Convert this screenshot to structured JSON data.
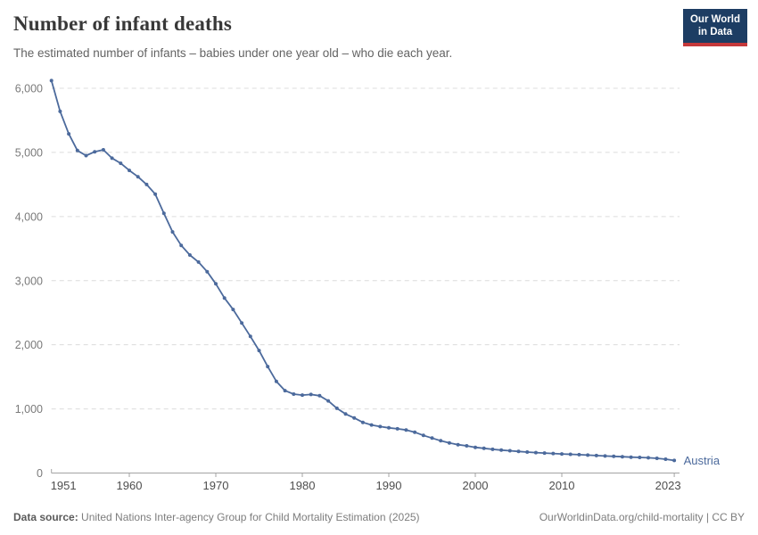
{
  "header": {
    "title": "Number of infant deaths",
    "subtitle": "The estimated number of infants – babies under one year old – who die each year.",
    "logo": {
      "line1": "Our World",
      "line2": "in Data"
    }
  },
  "footer": {
    "source_label": "Data source:",
    "source_text": " United Nations Inter-agency Group for Child Mortality Estimation (2025)",
    "rights": "OurWorldinData.org/child-mortality | CC BY"
  },
  "colors": {
    "series": "#4C6A9C",
    "grid": "#dcdcdc",
    "axis": "#a3a3a3",
    "y_labels": "#7a7a7a",
    "x_labels": "#4e4e4e",
    "logo_bg": "#1d3d63",
    "logo_accent": "#C5383A"
  },
  "chart_data": {
    "type": "line",
    "title": "Number of infant deaths",
    "entity": "Austria",
    "series_color": "#4C6A9C",
    "xlabel": "",
    "ylabel": "",
    "ylim": [
      0,
      6000
    ],
    "yticks": [
      0,
      1000,
      2000,
      3000,
      4000,
      5000,
      6000
    ],
    "ytick_labels": [
      "0",
      "1,000",
      "2,000",
      "3,000",
      "4,000",
      "5,000",
      "6,000"
    ],
    "xticks": [
      1951,
      1960,
      1970,
      1980,
      1990,
      2000,
      2010,
      2023
    ],
    "grid": "horizontal-dashed",
    "legend": "line-end-label",
    "x": [
      1951,
      1952,
      1953,
      1954,
      1955,
      1956,
      1957,
      1958,
      1959,
      1960,
      1961,
      1962,
      1963,
      1964,
      1965,
      1966,
      1967,
      1968,
      1969,
      1970,
      1971,
      1972,
      1973,
      1974,
      1975,
      1976,
      1977,
      1978,
      1979,
      1980,
      1981,
      1982,
      1983,
      1984,
      1985,
      1986,
      1987,
      1988,
      1989,
      1990,
      1991,
      1992,
      1993,
      1994,
      1995,
      1996,
      1997,
      1998,
      1999,
      2000,
      2001,
      2002,
      2003,
      2004,
      2005,
      2006,
      2007,
      2008,
      2009,
      2010,
      2011,
      2012,
      2013,
      2014,
      2015,
      2016,
      2017,
      2018,
      2019,
      2020,
      2021,
      2022,
      2023
    ],
    "values": [
      6120,
      5640,
      5290,
      5030,
      4950,
      5010,
      5040,
      4910,
      4830,
      4720,
      4620,
      4500,
      4350,
      4050,
      3760,
      3550,
      3400,
      3290,
      3140,
      2950,
      2730,
      2550,
      2340,
      2130,
      1910,
      1660,
      1430,
      1285,
      1230,
      1215,
      1225,
      1205,
      1125,
      1010,
      920,
      860,
      790,
      750,
      725,
      705,
      690,
      672,
      637,
      587,
      545,
      503,
      470,
      442,
      424,
      400,
      385,
      370,
      358,
      347,
      337,
      327,
      319,
      312,
      305,
      298,
      292,
      286,
      280,
      273,
      266,
      260,
      254,
      248,
      243,
      238,
      230,
      215,
      196
    ]
  }
}
